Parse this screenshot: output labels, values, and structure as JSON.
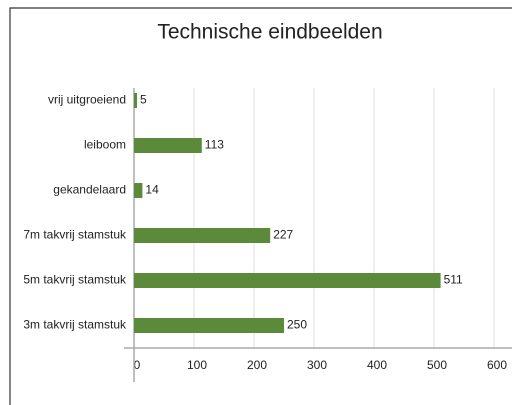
{
  "chart_data": {
    "type": "hbar",
    "title": "Technische eindbeelden",
    "categories": [
      "vrij uitgroeiend",
      "leiboom",
      "gekandelaard",
      "7m takvrij stamstuk",
      "5m takvrij stamstuk",
      "3m takvrij stamstuk"
    ],
    "values": [
      5,
      113,
      14,
      227,
      511,
      250
    ],
    "color": "#5b8a3a",
    "xlim": [
      0,
      600
    ],
    "xticks": [
      0,
      100,
      200,
      300,
      400,
      500,
      600
    ],
    "grid": true
  }
}
